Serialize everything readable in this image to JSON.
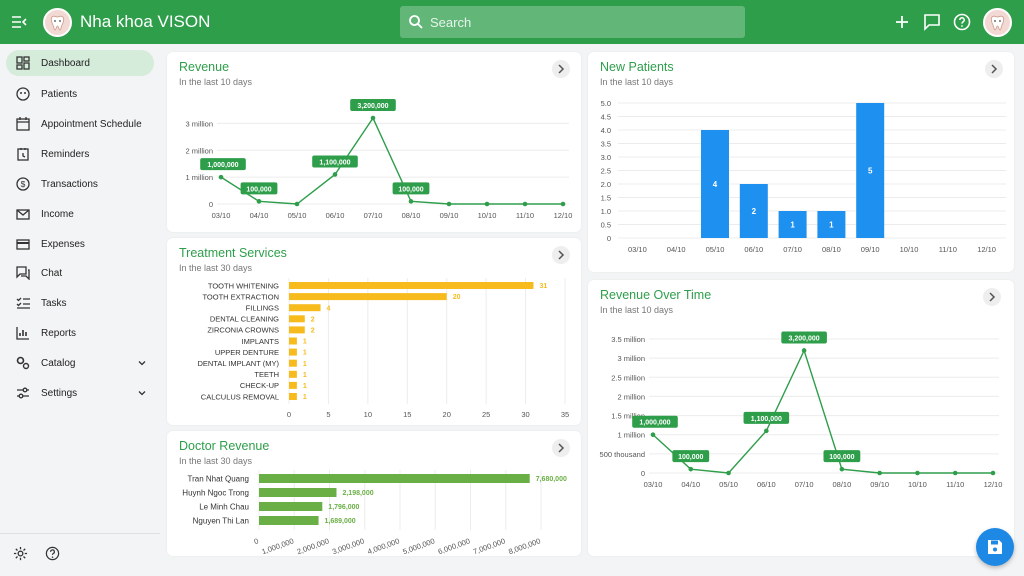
{
  "app": {
    "title": "Nha khoa VISON"
  },
  "search": {
    "placeholder": "Search"
  },
  "sidebar": {
    "items": [
      {
        "label": "Dashboard",
        "icon": "dashboard-icon",
        "active": true
      },
      {
        "label": "Patients",
        "icon": "patients-icon"
      },
      {
        "label": "Appointment Schedule",
        "icon": "calendar-icon"
      },
      {
        "label": "Reminders",
        "icon": "reminder-icon"
      },
      {
        "label": "Transactions",
        "icon": "dollar-icon"
      },
      {
        "label": "Income",
        "icon": "mail-icon"
      },
      {
        "label": "Expenses",
        "icon": "card-icon"
      },
      {
        "label": "Chat",
        "icon": "chat-icon"
      },
      {
        "label": "Tasks",
        "icon": "tasks-icon"
      },
      {
        "label": "Reports",
        "icon": "reports-icon"
      },
      {
        "label": "Catalog",
        "icon": "catalog-icon",
        "expandable": true
      },
      {
        "label": "Settings",
        "icon": "settings-icon",
        "expandable": true
      }
    ]
  },
  "cards": {
    "revenue": {
      "title": "Revenue",
      "subtitle": "In the last 10 days"
    },
    "new_patients": {
      "title": "New Patients",
      "subtitle": "In the last 10 days"
    },
    "treatment": {
      "title": "Treatment Services",
      "subtitle": "In the last 30 days"
    },
    "revenue_time": {
      "title": "Revenue Over Time",
      "subtitle": "In the last 10 days"
    },
    "doctor": {
      "title": "Doctor Revenue",
      "subtitle": "In the last 30 days"
    }
  },
  "chart_data": [
    {
      "type": "line",
      "title": "Revenue",
      "x": [
        "03/10",
        "04/10",
        "05/10",
        "06/10",
        "07/10",
        "08/10",
        "09/10",
        "10/10",
        "11/10",
        "12/10"
      ],
      "values": [
        1000000,
        100000,
        0,
        1100000,
        3200000,
        100000,
        0,
        0,
        0,
        0
      ],
      "data_labels": [
        "1,000,000",
        "100,000",
        "",
        "1,100,000",
        "3,200,000",
        "100,000",
        "",
        "",
        "",
        ""
      ],
      "yticks": [
        "0",
        "1 million",
        "2 million",
        "3 million"
      ],
      "ytick_values": [
        0,
        1000000,
        2000000,
        3000000
      ],
      "ylim": [
        0,
        3500000
      ],
      "grid": true,
      "color": "#2e9e4b"
    },
    {
      "type": "bar",
      "title": "New Patients",
      "categories": [
        "03/10",
        "04/10",
        "05/10",
        "06/10",
        "07/10",
        "08/10",
        "09/10",
        "10/10",
        "11/10",
        "12/10"
      ],
      "values": [
        0,
        0,
        4,
        2,
        1,
        1,
        5,
        0,
        0,
        0
      ],
      "yticks": [
        "0",
        "0.5",
        "1.0",
        "1.5",
        "2.0",
        "2.5",
        "3.0",
        "3.5",
        "4.0",
        "4.5",
        "5.0"
      ],
      "ylim": [
        0,
        5
      ],
      "grid": true,
      "color": "#1e90f0"
    },
    {
      "type": "bar",
      "orientation": "horizontal",
      "title": "Treatment Services",
      "categories": [
        "TOOTH WHITENING",
        "TOOTH EXTRACTION",
        "FILLINGS",
        "DENTAL CLEANING",
        "ZIRCONIA CROWNS",
        "IMPLANTS",
        "UPPER DENTURE",
        "DENTAL IMPLANT (MY)",
        "TEETH",
        "CHECK-UP",
        "CALCULUS REMOVAL"
      ],
      "values": [
        31,
        20,
        4,
        2,
        2,
        1,
        1,
        1,
        1,
        1,
        1
      ],
      "xticks": [
        "0",
        "5",
        "10",
        "15",
        "20",
        "25",
        "30",
        "35"
      ],
      "xlim": [
        0,
        35
      ],
      "grid": true,
      "color": "#f7bb1e"
    },
    {
      "type": "line",
      "title": "Revenue Over Time",
      "x": [
        "03/10",
        "04/10",
        "05/10",
        "06/10",
        "07/10",
        "08/10",
        "09/10",
        "10/10",
        "11/10",
        "12/10"
      ],
      "values": [
        1000000,
        100000,
        0,
        1100000,
        3200000,
        100000,
        0,
        0,
        0,
        0
      ],
      "data_labels": [
        "1,000,000",
        "100,000",
        "",
        "1,100,000",
        "3,200,000",
        "100,000",
        "",
        "",
        "",
        ""
      ],
      "yticks": [
        "0",
        "500 thousand",
        "1 million",
        "1.5 million",
        "2 million",
        "2.5 million",
        "3 million",
        "3.5 million"
      ],
      "ytick_values": [
        0,
        500000,
        1000000,
        1500000,
        2000000,
        2500000,
        3000000,
        3500000
      ],
      "ylim": [
        0,
        3500000
      ],
      "grid": true,
      "color": "#2e9e4b"
    },
    {
      "type": "bar",
      "orientation": "horizontal",
      "title": "Doctor Revenue",
      "categories": [
        "Tran Nhat Quang",
        "Huynh Ngoc Trong",
        "Le Minh Chau",
        "Nguyen Thi Lan"
      ],
      "values": [
        7680000,
        2198000,
        1796000,
        1689000
      ],
      "data_labels": [
        "7,680,000",
        "2,198,000",
        "1,796,000",
        "1,689,000"
      ],
      "xticks": [
        "0",
        "1,000,000",
        "2,000,000",
        "3,000,000",
        "4,000,000",
        "5,000,000",
        "6,000,000",
        "7,000,000",
        "8,000,000"
      ],
      "xlim": [
        0,
        8000000
      ],
      "grid": true,
      "color": "#6aaf45"
    }
  ]
}
